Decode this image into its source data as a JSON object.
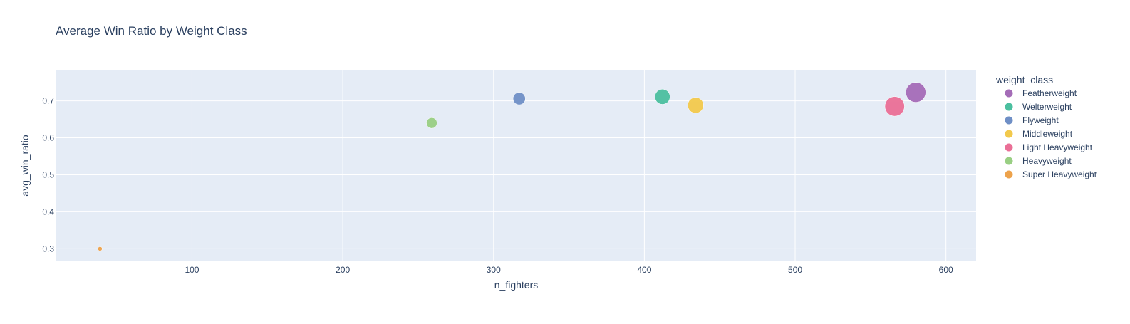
{
  "chart_data": {
    "type": "scatter",
    "title": "Average Win Ratio by Weight Class",
    "xlabel": "n_fighters",
    "ylabel": "avg_win_ratio",
    "xlim": [
      10,
      620
    ],
    "ylim": [
      0.268,
      0.782
    ],
    "xticks": [
      100,
      200,
      300,
      400,
      500,
      600
    ],
    "yticks": [
      0.3,
      0.4,
      0.5,
      0.6,
      0.7
    ],
    "grid": true,
    "legend": {
      "title": "weight_class",
      "placement": "right",
      "entries": [
        "Featherweight",
        "Welterweight",
        "Flyweight",
        "Middleweight",
        "Light Heavyweight",
        "Heavyweight",
        "Super Heavyweight"
      ]
    },
    "colors": {
      "plot_background": "#e5ecf6",
      "grid": "#ffffff",
      "text": "#2a3f5f"
    },
    "series": [
      {
        "name": "Featherweight",
        "color": "#a46cb7",
        "x": 580,
        "y": 0.723
      },
      {
        "name": "Welterweight",
        "color": "#4bbf9f",
        "x": 412,
        "y": 0.711
      },
      {
        "name": "Flyweight",
        "color": "#6f8fc6",
        "x": 317,
        "y": 0.706
      },
      {
        "name": "Middleweight",
        "color": "#f2c94c",
        "x": 434,
        "y": 0.688
      },
      {
        "name": "Light Heavyweight",
        "color": "#ea6f96",
        "x": 566,
        "y": 0.685
      },
      {
        "name": "Heavyweight",
        "color": "#99cf83",
        "x": 259,
        "y": 0.64
      },
      {
        "name": "Super Heavyweight",
        "color": "#eda24b",
        "x": 39,
        "y": 0.3
      }
    ]
  }
}
